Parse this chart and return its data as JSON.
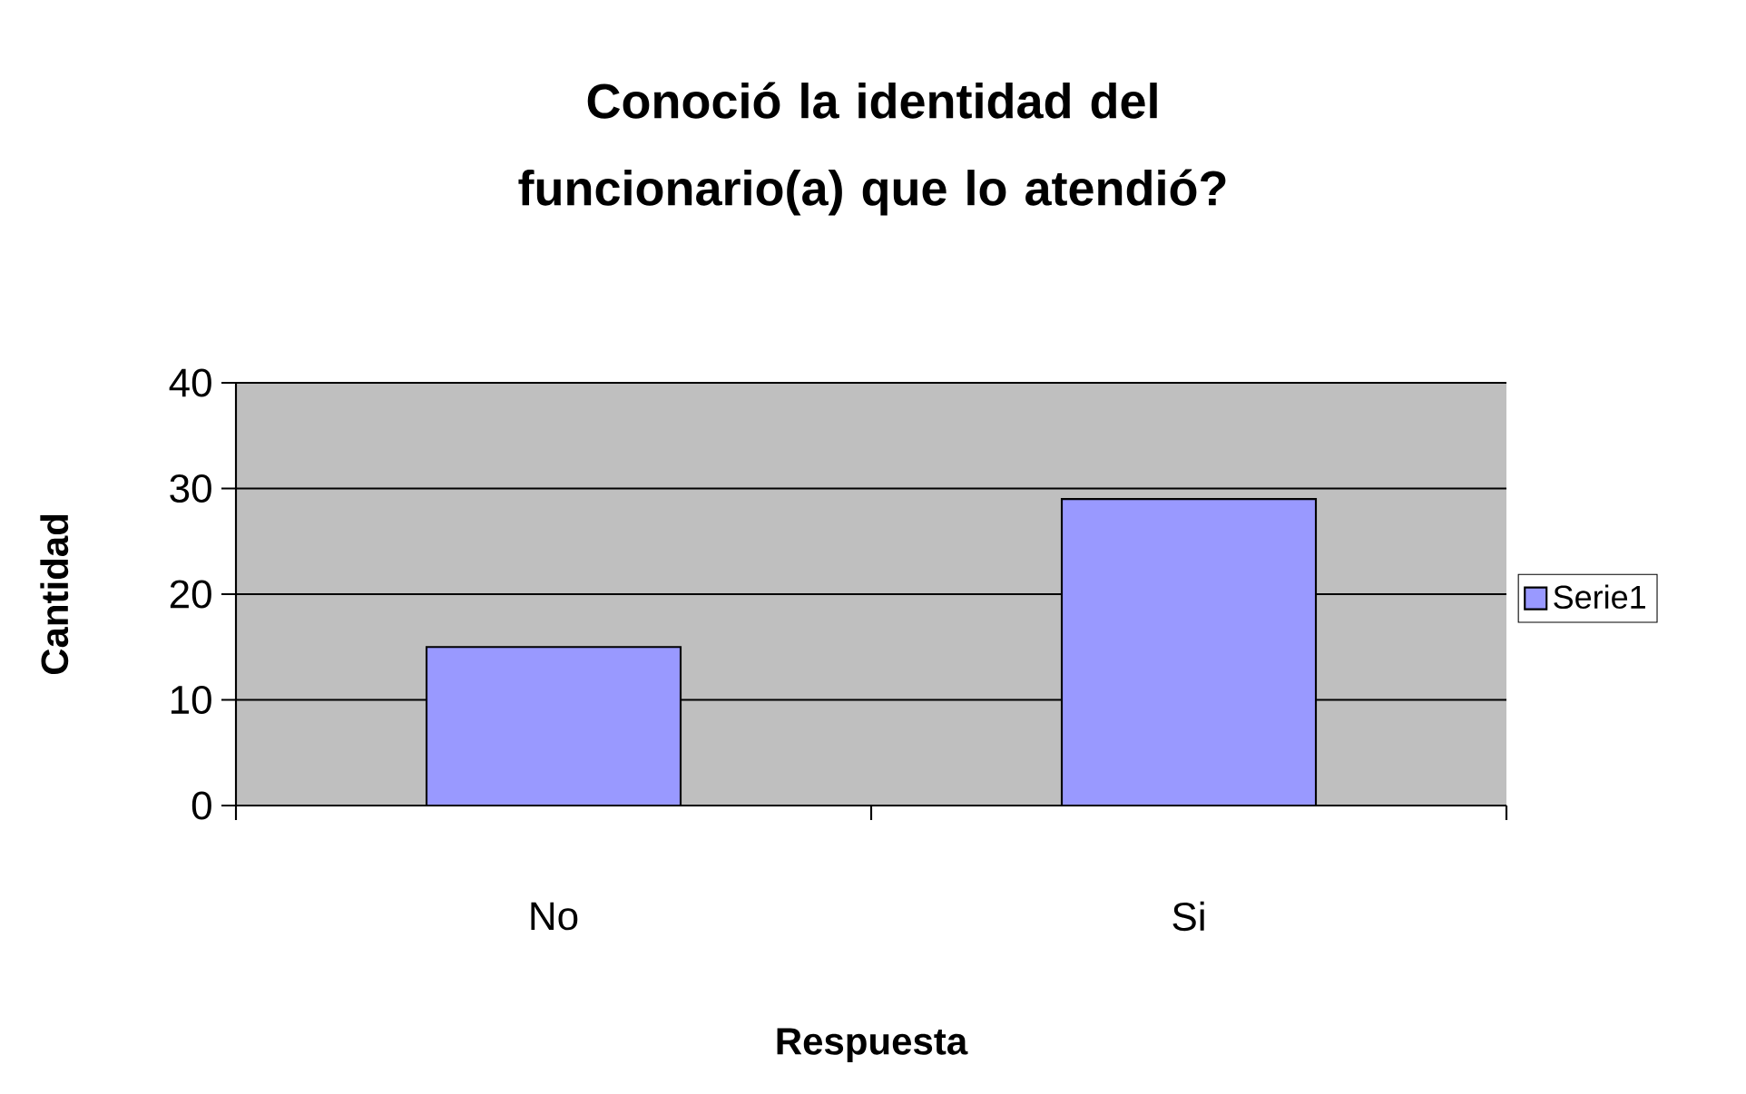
{
  "chart_data": {
    "type": "bar",
    "title": "Conoció la identidad del funcionario(a) que lo atendió?",
    "xlabel": "Respuesta",
    "ylabel": "Cantidad",
    "categories": [
      "No",
      "Si"
    ],
    "series": [
      {
        "name": "Serie1",
        "color": "#9999ff",
        "values": [
          15,
          29
        ]
      }
    ],
    "ylim": [
      0,
      40
    ],
    "yticks": [
      0,
      10,
      20,
      30,
      40
    ],
    "grid": "y",
    "legend": "right"
  }
}
